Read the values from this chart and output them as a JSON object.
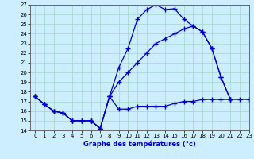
{
  "title": "Graphe des températures (°c)",
  "bg_color": "#cceeff",
  "line_color": "#0000cc",
  "xlim": [
    -0.5,
    23
  ],
  "ylim": [
    14,
    27
  ],
  "xticks": [
    0,
    1,
    2,
    3,
    4,
    5,
    6,
    7,
    8,
    9,
    10,
    11,
    12,
    13,
    14,
    15,
    16,
    17,
    18,
    19,
    20,
    21,
    22,
    23
  ],
  "yticks": [
    14,
    15,
    16,
    17,
    18,
    19,
    20,
    21,
    22,
    23,
    24,
    25,
    26,
    27
  ],
  "series": [
    [
      17.5,
      16.7,
      16.0,
      15.8,
      15.0,
      15.0,
      15.0,
      14.2,
      17.5,
      16.2,
      16.2,
      16.5,
      16.5,
      16.5,
      16.5,
      16.8,
      17.0,
      17.0,
      17.2,
      17.2,
      17.2,
      17.2,
      17.2,
      17.2
    ],
    [
      17.5,
      16.7,
      16.0,
      15.8,
      15.0,
      15.0,
      15.0,
      14.2,
      17.5,
      20.5,
      22.5,
      25.5,
      26.5,
      27.0,
      26.5,
      26.6,
      25.5,
      24.8,
      24.2,
      22.5,
      19.5,
      17.2,
      null,
      null
    ],
    [
      17.5,
      16.7,
      16.0,
      15.8,
      15.0,
      15.0,
      15.0,
      14.2,
      17.5,
      19.0,
      20.0,
      21.0,
      22.0,
      23.0,
      23.5,
      24.0,
      24.5,
      24.8,
      24.2,
      22.5,
      19.5,
      17.2,
      null,
      null
    ]
  ]
}
